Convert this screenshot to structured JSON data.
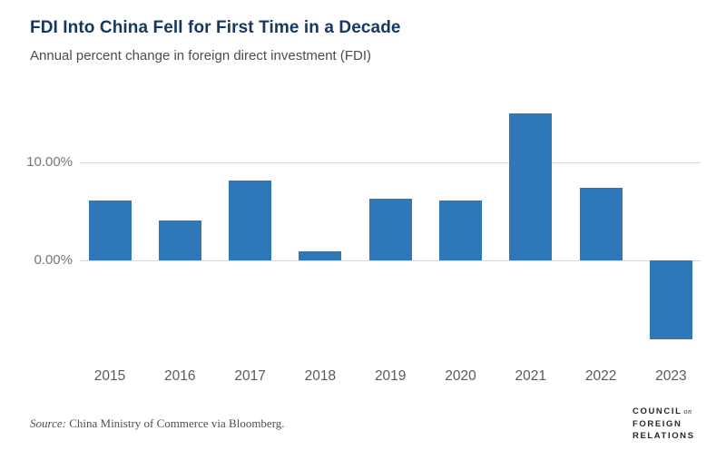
{
  "header": {
    "title": "FDI Into China Fell for First Time in a Decade",
    "subtitle": "Annual percent change in foreign direct investment (FDI)"
  },
  "chart_data": {
    "type": "bar",
    "categories": [
      "2015",
      "2016",
      "2017",
      "2018",
      "2019",
      "2020",
      "2021",
      "2022",
      "2023"
    ],
    "values": [
      6.1,
      4.1,
      8.1,
      0.9,
      6.3,
      6.1,
      14.9,
      7.4,
      -8.0
    ],
    "title": "FDI Into China Fell for First Time in a Decade",
    "subtitle": "Annual percent change in foreign direct investment (FDI)",
    "xlabel": "",
    "ylabel": "",
    "yticks": [
      {
        "value": 10,
        "label": "10.00%"
      },
      {
        "value": 0,
        "label": "0.00%"
      }
    ],
    "ylim": [
      -10.5,
      17.2
    ],
    "grid": "horizontal",
    "legend_position": "none",
    "bar_color": "#2e77b8",
    "gridline_color": "#d8d8d8"
  },
  "footer": {
    "source_prefix": "Source:",
    "source_text": " China Ministry of Commerce via Bloomberg.",
    "logo": {
      "word1": "COUNCIL",
      "on": "on",
      "word2": "FOREIGN",
      "word3": "RELATIONS"
    }
  },
  "colors": {
    "title": "#17375e",
    "subtitle": "#4c4c4c",
    "axis_label": "#767676",
    "year_label": "#5a5a5a",
    "background": "#ffffff"
  }
}
